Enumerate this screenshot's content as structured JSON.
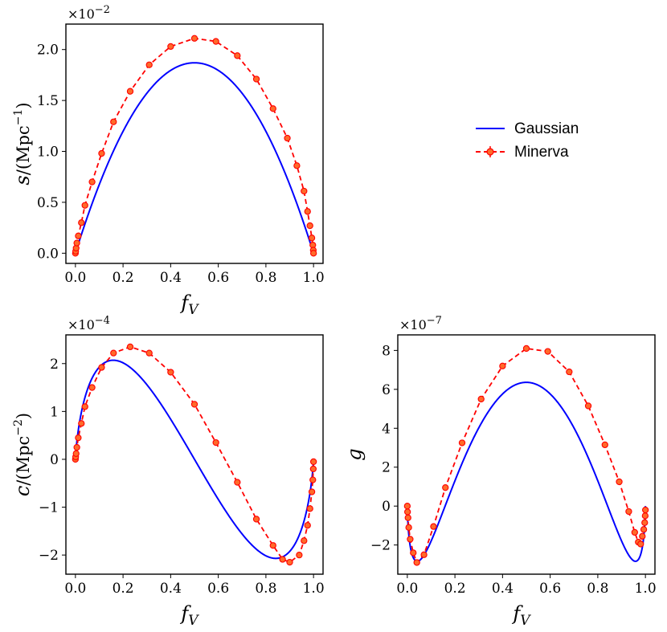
{
  "legend": {
    "entries": [
      {
        "label": "Gaussian",
        "color": "#0000ff",
        "style": "solid"
      },
      {
        "label": "Minerva",
        "color": "#ff0000",
        "marker_face": "#ff6a2a",
        "style": "dashed"
      }
    ]
  },
  "colors": {
    "gaussian": "#0000ff",
    "minerva": "#ff0000",
    "marker": "#ff6a2a"
  },
  "chart_data": [
    {
      "type": "line",
      "ylabel": "s/(Mpc^-1)",
      "ylabel_parts": {
        "var": "s",
        "open": "/(Mpc",
        "exp": "−1",
        "close": ")"
      },
      "xlabel_parts": {
        "var": "f",
        "sub": "V"
      },
      "multiplier": "×10",
      "multiplier_exp": "−2",
      "xlim": [
        -0.04,
        1.04
      ],
      "ylim": [
        -0.1,
        2.25
      ],
      "xticks": [
        0.0,
        0.2,
        0.4,
        0.6,
        0.8,
        1.0
      ],
      "xtick_labels": [
        "0.0",
        "0.2",
        "0.4",
        "0.6",
        "0.8",
        "1.0"
      ],
      "yticks": [
        0.0,
        0.5,
        1.0,
        1.5,
        2.0
      ],
      "ytick_labels": [
        "0.0",
        "0.5",
        "1.0",
        "1.5",
        "2.0"
      ],
      "series": [
        {
          "name": "Gaussian",
          "model": "gaussian_s",
          "amplitude": 1.87
        },
        {
          "name": "Minerva",
          "x": [
            0.0,
            0.001,
            0.003,
            0.006,
            0.012,
            0.025,
            0.04,
            0.07,
            0.11,
            0.16,
            0.23,
            0.31,
            0.4,
            0.5,
            0.59,
            0.68,
            0.76,
            0.83,
            0.89,
            0.93,
            0.96,
            0.975,
            0.985,
            0.993,
            0.997,
            0.999,
            1.0
          ],
          "y": [
            0.0,
            0.02,
            0.05,
            0.1,
            0.17,
            0.3,
            0.47,
            0.7,
            0.98,
            1.29,
            1.59,
            1.85,
            2.03,
            2.11,
            2.08,
            1.94,
            1.71,
            1.42,
            1.13,
            0.86,
            0.61,
            0.41,
            0.27,
            0.15,
            0.08,
            0.03,
            0.0
          ]
        }
      ]
    },
    {
      "type": "line",
      "ylabel": "c/(Mpc^-2)",
      "ylabel_parts": {
        "var": "c",
        "open": "/(Mpc",
        "exp": "−2",
        "close": ")"
      },
      "xlabel_parts": {
        "var": "f",
        "sub": "V"
      },
      "multiplier": "×10",
      "multiplier_exp": "−4",
      "xlim": [
        -0.04,
        1.04
      ],
      "ylim": [
        -2.4,
        2.6
      ],
      "xticks": [
        0.0,
        0.2,
        0.4,
        0.6,
        0.8,
        1.0
      ],
      "xtick_labels": [
        "0.0",
        "0.2",
        "0.4",
        "0.6",
        "0.8",
        "1.0"
      ],
      "yticks": [
        -2,
        -1,
        0,
        1,
        2
      ],
      "ytick_labels": [
        "−2",
        "−1",
        "0",
        "1",
        "2"
      ],
      "series": [
        {
          "name": "Gaussian",
          "model": "gaussian_c",
          "amplitude": 2.07
        },
        {
          "name": "Minerva",
          "x": [
            0.0,
            0.001,
            0.003,
            0.006,
            0.012,
            0.025,
            0.04,
            0.07,
            0.11,
            0.16,
            0.23,
            0.31,
            0.4,
            0.5,
            0.59,
            0.68,
            0.76,
            0.83,
            0.87,
            0.9,
            0.94,
            0.96,
            0.975,
            0.985,
            0.993,
            0.997,
            0.999,
            1.0
          ],
          "y": [
            0.0,
            0.05,
            0.12,
            0.25,
            0.45,
            0.75,
            1.1,
            1.5,
            1.92,
            2.22,
            2.35,
            2.22,
            1.82,
            1.15,
            0.35,
            -0.48,
            -1.25,
            -1.8,
            -2.09,
            -2.15,
            -2.0,
            -1.7,
            -1.38,
            -1.03,
            -0.68,
            -0.43,
            -0.2,
            -0.05
          ]
        }
      ]
    },
    {
      "type": "line",
      "ylabel": "g",
      "ylabel_parts": {
        "var": "g",
        "open": "",
        "exp": "",
        "close": ""
      },
      "xlabel_parts": {
        "var": "f",
        "sub": "V"
      },
      "multiplier": "×10",
      "multiplier_exp": "−7",
      "xlim": [
        -0.04,
        1.04
      ],
      "ylim": [
        -3.5,
        8.8
      ],
      "xticks": [
        0.0,
        0.2,
        0.4,
        0.6,
        0.8,
        1.0
      ],
      "xtick_labels": [
        "0.0",
        "0.2",
        "0.4",
        "0.6",
        "0.8",
        "1.0"
      ],
      "yticks": [
        -2,
        0,
        2,
        4,
        6,
        8
      ],
      "ytick_labels": [
        "−2",
        "0",
        "2",
        "4",
        "6",
        "8"
      ],
      "series": [
        {
          "name": "Gaussian",
          "model": "gaussian_g",
          "amplitude": 6.36
        },
        {
          "name": "Minerva",
          "x": [
            0.0,
            0.001,
            0.003,
            0.006,
            0.012,
            0.025,
            0.04,
            0.07,
            0.11,
            0.16,
            0.23,
            0.31,
            0.4,
            0.5,
            0.59,
            0.68,
            0.76,
            0.83,
            0.89,
            0.93,
            0.955,
            0.97,
            0.98,
            0.987,
            0.993,
            0.997,
            0.999,
            1.0
          ],
          "y": [
            0.0,
            -0.3,
            -0.6,
            -1.1,
            -1.7,
            -2.4,
            -2.9,
            -2.5,
            -1.05,
            0.95,
            3.25,
            5.5,
            7.2,
            8.1,
            7.95,
            6.9,
            5.15,
            3.15,
            1.25,
            -0.28,
            -1.35,
            -1.85,
            -1.95,
            -1.55,
            -1.2,
            -0.85,
            -0.5,
            -0.2
          ]
        }
      ]
    }
  ]
}
